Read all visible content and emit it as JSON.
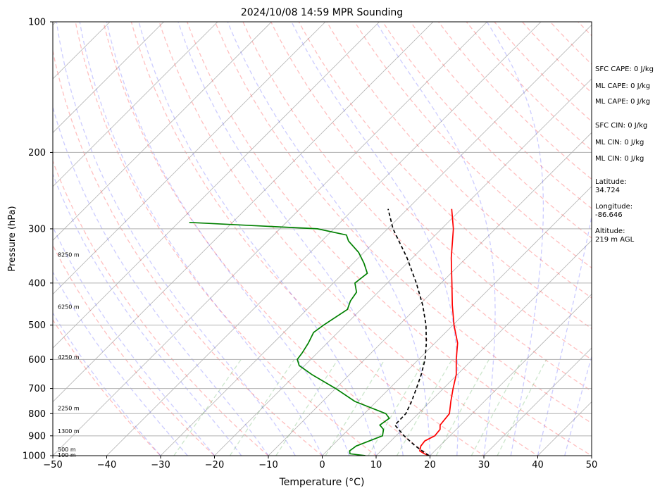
{
  "chart_data": {
    "type": "line",
    "subtype": "skew-t log-p sounding",
    "title": "2024/10/08 14:59 MPR Sounding",
    "xlabel": "Temperature (°C)",
    "ylabel": "Pressure (hPa)",
    "xlim": [
      -50,
      50
    ],
    "ylim": [
      1000,
      100
    ],
    "y_scale": "log",
    "x_ticks": [
      -50,
      -40,
      -30,
      -20,
      -10,
      0,
      10,
      20,
      30,
      40,
      50
    ],
    "y_ticks": [
      1000,
      900,
      800,
      700,
      600,
      500,
      400,
      300,
      200,
      100
    ],
    "grid": true,
    "series": [
      {
        "role": "temperature",
        "color": "#ff0000",
        "style": "solid",
        "points": [
          [
            1000,
            19.8
          ],
          [
            990,
            18.6
          ],
          [
            975,
            17.2
          ],
          [
            950,
            16.5
          ],
          [
            925,
            16.3
          ],
          [
            900,
            17.2
          ],
          [
            870,
            17.0
          ],
          [
            850,
            16.2
          ],
          [
            800,
            15.8
          ],
          [
            750,
            13.8
          ],
          [
            700,
            11.8
          ],
          [
            650,
            9.8
          ],
          [
            600,
            7.0
          ],
          [
            550,
            4.2
          ],
          [
            500,
            0.2
          ],
          [
            450,
            -3.8
          ],
          [
            400,
            -8.0
          ],
          [
            350,
            -12.8
          ],
          [
            300,
            -17.8
          ],
          [
            270,
            -21.8
          ]
        ]
      },
      {
        "role": "dewpoint",
        "color": "#008000",
        "style": "solid",
        "points": [
          [
            1000,
            8.0
          ],
          [
            990,
            4.8
          ],
          [
            975,
            4.2
          ],
          [
            950,
            4.5
          ],
          [
            925,
            6.0
          ],
          [
            900,
            7.5
          ],
          [
            870,
            6.5
          ],
          [
            850,
            5.0
          ],
          [
            820,
            5.5
          ],
          [
            800,
            4.0
          ],
          [
            750,
            -4.0
          ],
          [
            700,
            -10.0
          ],
          [
            650,
            -17.0
          ],
          [
            620,
            -21.0
          ],
          [
            600,
            -22.5
          ],
          [
            580,
            -22.8
          ],
          [
            550,
            -23.5
          ],
          [
            520,
            -24.5
          ],
          [
            500,
            -24.0
          ],
          [
            460,
            -22.5
          ],
          [
            440,
            -23.5
          ],
          [
            420,
            -24.0
          ],
          [
            400,
            -26.0
          ],
          [
            380,
            -25.5
          ],
          [
            360,
            -28.0
          ],
          [
            340,
            -31.0
          ],
          [
            320,
            -35.0
          ],
          [
            310,
            -36.5
          ],
          [
            300,
            -43.0
          ],
          [
            290,
            -68.0
          ]
        ]
      },
      {
        "role": "parcel",
        "color": "#000000",
        "style": "dashed",
        "points": [
          [
            1000,
            19.8
          ],
          [
            950,
            15.5
          ],
          [
            900,
            11.5
          ],
          [
            850,
            7.8
          ],
          [
            800,
            7.7
          ],
          [
            750,
            6.5
          ],
          [
            700,
            5.0
          ],
          [
            650,
            3.3
          ],
          [
            600,
            1.2
          ],
          [
            550,
            -1.6
          ],
          [
            500,
            -5.0
          ],
          [
            450,
            -9.3
          ],
          [
            400,
            -14.6
          ],
          [
            350,
            -21.0
          ],
          [
            300,
            -29.0
          ],
          [
            270,
            -33.6
          ]
        ]
      }
    ],
    "height_labels": [
      {
        "p": 1000,
        "text": "100 m"
      },
      {
        "p": 970,
        "text": "500 m"
      },
      {
        "p": 880,
        "text": "1300 m"
      },
      {
        "p": 780,
        "text": "2250 m"
      },
      {
        "p": 595,
        "text": "4250 m"
      },
      {
        "p": 455,
        "text": "6250 m"
      },
      {
        "p": 345,
        "text": "8250 m"
      }
    ],
    "reference_lines": {
      "isotherms_color": "#808080",
      "dry_adiabats_color": "#ff0000",
      "moist_adiabats_color": "#0000ff",
      "mixing_ratio_color": "#008000"
    }
  },
  "side_panel": [
    "SFC CAPE: 0 J/kg",
    "ML CAPE: 0 J/kg",
    "ML CAPE: 0 J/kg",
    "SFC CIN: 0 J/kg",
    "ML CIN: 0 J/kg",
    "ML CIN: 0 J/kg",
    "Latitude:\n34.724",
    "Longitude:\n-86.646",
    "Altitude:\n219 m AGL"
  ]
}
